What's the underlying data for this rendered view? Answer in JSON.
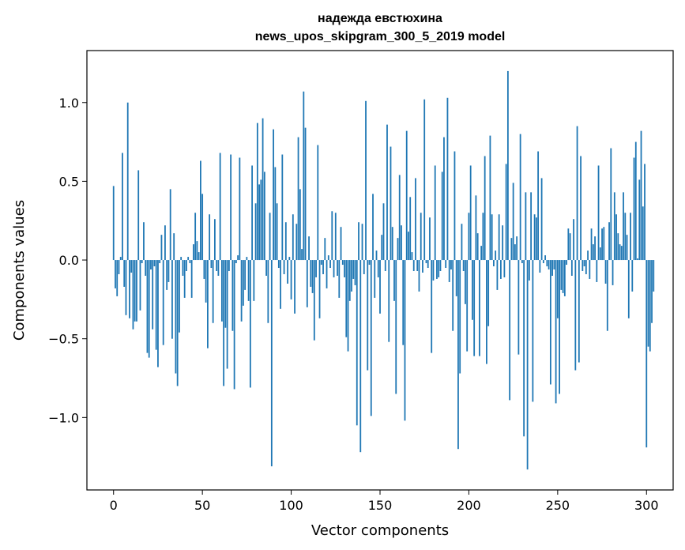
{
  "chart_data": {
    "type": "bar",
    "title": "надежда евстюхина",
    "subtitle": "news_upos_skipgram_300_5_2019 model",
    "xlabel": "Vector components",
    "ylabel": "Components values",
    "xlim": [
      -15,
      315
    ],
    "ylim": [
      -1.46,
      1.33
    ],
    "xticks": [
      0,
      50,
      100,
      150,
      200,
      250,
      300
    ],
    "xtick_labels": [
      "0",
      "50",
      "100",
      "150",
      "200",
      "250",
      "300"
    ],
    "yticks": [
      -1.0,
      -0.5,
      0.0,
      0.5,
      1.0
    ],
    "ytick_labels": [
      "−1.0",
      "−0.5",
      "0.0",
      "0.5",
      "1.0"
    ],
    "bar_color": "#1f77b4",
    "grid": false,
    "values": [
      0.47,
      -0.18,
      -0.23,
      -0.09,
      0.02,
      0.68,
      -0.17,
      -0.35,
      1.0,
      -0.37,
      -0.08,
      -0.44,
      -0.39,
      -0.39,
      0.57,
      -0.32,
      -0.02,
      0.24,
      -0.1,
      -0.59,
      -0.62,
      -0.06,
      -0.44,
      -0.04,
      -0.57,
      -0.68,
      -0.02,
      0.16,
      -0.54,
      0.22,
      -0.19,
      -0.14,
      0.45,
      -0.5,
      0.17,
      -0.72,
      -0.8,
      -0.46,
      0.02,
      -0.1,
      -0.24,
      -0.07,
      0.02,
      -0.02,
      -0.24,
      0.1,
      0.3,
      0.12,
      0.05,
      0.63,
      0.42,
      -0.12,
      -0.27,
      -0.56,
      0.29,
      -0.05,
      -0.4,
      0.26,
      -0.07,
      -0.1,
      0.68,
      -0.39,
      -0.8,
      -0.43,
      -0.69,
      -0.07,
      0.67,
      -0.45,
      -0.82,
      -0.02,
      0.03,
      0.65,
      -0.39,
      -0.29,
      -0.19,
      0.02,
      -0.26,
      -0.81,
      0.6,
      -0.26,
      0.36,
      0.87,
      0.48,
      0.51,
      0.9,
      0.56,
      -0.1,
      -0.4,
      0.3,
      -1.31,
      0.83,
      0.59,
      0.36,
      -0.05,
      -0.31,
      0.67,
      -0.09,
      0.24,
      -0.15,
      0.02,
      -0.25,
      0.29,
      -0.34,
      0.23,
      0.78,
      0.45,
      0.07,
      1.07,
      0.84,
      -0.3,
      0.15,
      -0.17,
      -0.21,
      -0.51,
      -0.11,
      0.73,
      -0.37,
      -0.03,
      -0.09,
      0.14,
      -0.18,
      0.03,
      -0.05,
      0.31,
      -0.11,
      0.3,
      -0.1,
      -0.24,
      0.21,
      -0.03,
      -0.11,
      -0.49,
      -0.58,
      -0.26,
      -0.2,
      -0.12,
      -0.16,
      -1.05,
      0.24,
      -1.22,
      0.23,
      -0.09,
      1.01,
      -0.7,
      -0.03,
      -0.99,
      0.42,
      -0.24,
      0.06,
      -0.11,
      -0.34,
      0.16,
      0.36,
      -0.07,
      0.86,
      -0.52,
      0.72,
      0.21,
      -0.26,
      -0.85,
      0.14,
      0.54,
      0.22,
      -0.54,
      -1.02,
      0.82,
      0.18,
      0.4,
      0.05,
      -0.07,
      0.52,
      -0.07,
      -0.2,
      0.3,
      -0.08,
      1.02,
      -0.02,
      -0.05,
      0.27,
      -0.59,
      -0.13,
      0.6,
      -0.12,
      -0.11,
      -0.07,
      0.56,
      0.78,
      -0.05,
      1.03,
      -0.14,
      -0.06,
      -0.45,
      0.69,
      -0.23,
      -1.2,
      -0.72,
      0.23,
      -0.07,
      -0.28,
      -0.58,
      0.3,
      0.6,
      -0.38,
      -0.61,
      0.41,
      0.17,
      -0.61,
      0.09,
      0.3,
      0.66,
      -0.66,
      -0.42,
      0.79,
      0.29,
      -0.04,
      0.06,
      -0.19,
      0.29,
      -0.12,
      0.22,
      -0.11,
      0.61,
      1.2,
      -0.89,
      0.14,
      0.49,
      0.1,
      0.15,
      -0.6,
      0.8,
      -0.02,
      -1.12,
      0.43,
      -1.33,
      -0.13,
      0.43,
      -0.9,
      0.29,
      0.27,
      0.69,
      -0.08,
      0.52,
      -0.02,
      0.03,
      -0.04,
      -0.06,
      -0.79,
      -0.1,
      -0.06,
      -0.91,
      -0.37,
      -0.85,
      -0.19,
      -0.21,
      -0.23,
      -0.03,
      0.2,
      0.17,
      -0.1,
      0.26,
      -0.7,
      0.85,
      -0.65,
      0.66,
      -0.07,
      -0.04,
      -0.09,
      0.06,
      -0.12,
      0.2,
      0.1,
      0.15,
      -0.14,
      0.6,
      0.08,
      0.2,
      0.21,
      -0.15,
      -0.45,
      0.24,
      0.71,
      -0.16,
      0.43,
      0.29,
      0.17,
      0.1,
      0.09,
      0.43,
      0.3,
      0.16,
      -0.37,
      0.3,
      -0.2,
      0.65,
      0.75,
      0.01,
      0.51,
      0.82,
      0.34,
      0.61,
      -1.19,
      -0.55,
      -0.58,
      -0.4,
      -0.2
    ]
  }
}
